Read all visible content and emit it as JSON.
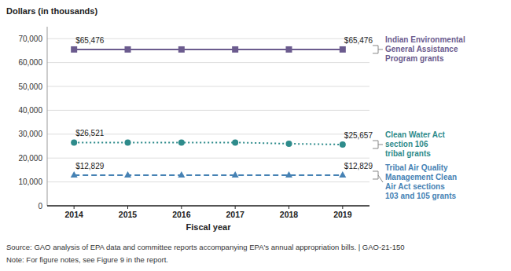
{
  "chart_data": {
    "type": "line",
    "ylabel": "Dollars (in thousands)",
    "xlabel": "Fiscal year",
    "x": [
      2014,
      2015,
      2016,
      2017,
      2018,
      2019
    ],
    "series": [
      {
        "name": "Indian Environmental\nGeneral Assistance\nProgram grants",
        "color": "#6B5B8E",
        "line_style": "solid",
        "marker": "square",
        "values": [
          65476,
          65476,
          65476,
          65476,
          65476,
          65476
        ],
        "value_labels": [
          "$65,476",
          null,
          null,
          null,
          null,
          "$65,476"
        ]
      },
      {
        "name": "Clean Water Act\nsection 106\ntribal grants",
        "color": "#2E8B8B",
        "line_style": "dotted",
        "marker": "circle",
        "values": [
          26521,
          26521,
          26521,
          26521,
          26000,
          25657
        ],
        "value_labels": [
          "$26,521",
          null,
          null,
          null,
          null,
          "$25,657"
        ]
      },
      {
        "name": "Tribal Air Quality\nManagement Clean\nAir Act sections\n103 and 105 grants",
        "color": "#4682B4",
        "line_style": "dashed",
        "marker": "triangle",
        "values": [
          12829,
          12829,
          12829,
          12829,
          12829,
          12829
        ],
        "value_labels": [
          "$12,829",
          null,
          null,
          null,
          null,
          "$12,829"
        ]
      }
    ],
    "xlim": [
      2013.5,
      2019.5
    ],
    "xticks": [
      2014,
      2015,
      2016,
      2017,
      2018,
      2019
    ],
    "ylim": [
      0,
      75000
    ],
    "yticks": [
      0,
      {
        "value": 10000,
        "label": "10,000"
      },
      {
        "value": 20000,
        "label": "20,000"
      },
      {
        "value": 30000,
        "label": "30,000"
      },
      {
        "value": 40000,
        "label": "40,000"
      },
      {
        "value": 50000,
        "label": "50,000"
      },
      {
        "value": 60000,
        "label": "60,000"
      },
      {
        "value": 70000,
        "label": "70,000"
      }
    ],
    "grid": true,
    "legend": "right",
    "data_labels": true,
    "source": "Source: GAO analysis of EPA data and committee reports accompanying EPA's annual appropriation bills.  |  GAO-21-150",
    "note": "Note: For figure notes, see Figure 9 in the report."
  }
}
